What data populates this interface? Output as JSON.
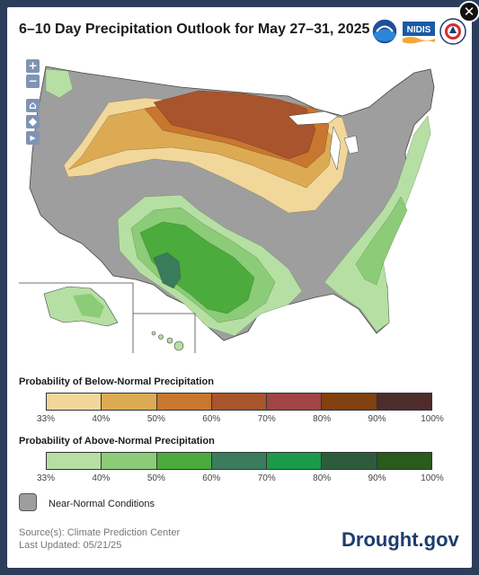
{
  "title": "6–10 Day Precipitation Outlook for May 27–31, 2025",
  "logos": [
    {
      "name": "noaa",
      "label": "NOAA"
    },
    {
      "name": "nidis",
      "label": "NIDIS"
    },
    {
      "name": "nws",
      "label": "NATIONAL WEATHER SERVICE"
    }
  ],
  "map_controls": {
    "zoom_in": "+",
    "zoom_out": "−"
  },
  "legend_below": {
    "title": "Probability of Below-Normal Precipitation",
    "colors": [
      "#f2d79b",
      "#dcaa52",
      "#c9762f",
      "#a8542c",
      "#a04444",
      "#80400f",
      "#4e2c2c"
    ],
    "ticks": [
      "33%",
      "40%",
      "50%",
      "60%",
      "70%",
      "80%",
      "90%",
      "100%"
    ]
  },
  "legend_above": {
    "title": "Probability of Above-Normal Precipitation",
    "colors": [
      "#b6dfa4",
      "#8ccc78",
      "#4bab3c",
      "#3a7c5c",
      "#1b9a49",
      "#2d5c3c",
      "#2a5a1c"
    ],
    "ticks": [
      "33%",
      "40%",
      "50%",
      "60%",
      "70%",
      "80%",
      "90%",
      "100%"
    ]
  },
  "near_normal": {
    "label": "Near-Normal Conditions",
    "color": "#9e9e9e"
  },
  "source": {
    "line1": "Source(s): Climate Prediction Center",
    "line2": "Last Updated: 05/21/25"
  },
  "brand": "Drought.gov"
}
